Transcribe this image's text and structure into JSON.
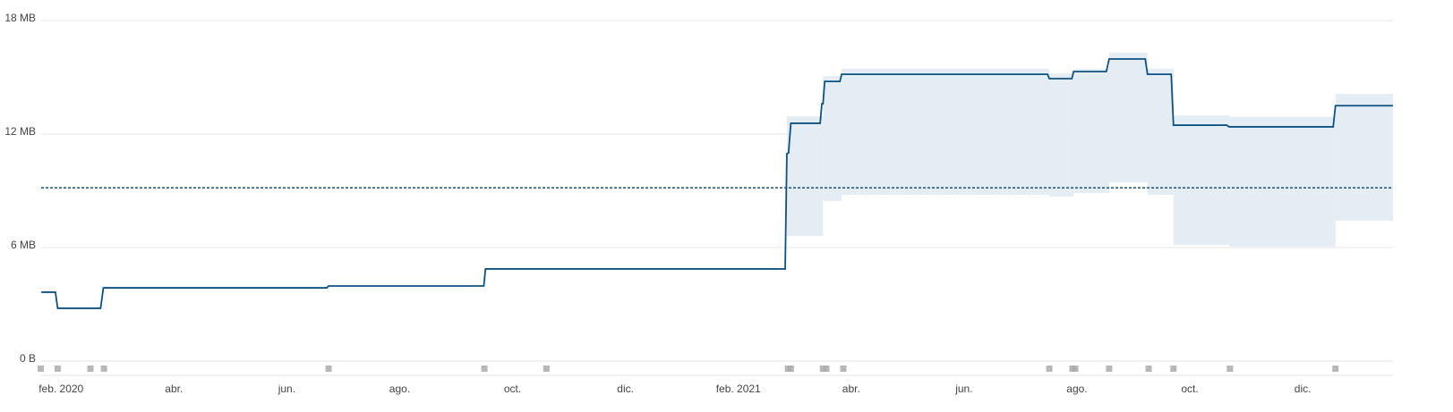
{
  "chart_data": {
    "type": "line",
    "x": [
      0.65,
      0.9,
      0.94,
      1.7,
      1.75,
      5.71,
      5.74,
      8.49,
      8.52,
      13.83,
      13.86,
      13.89,
      13.93,
      14.45,
      14.48,
      14.5,
      14.53,
      14.8,
      14.83,
      18.48,
      18.51,
      18.91,
      18.94,
      19.52,
      19.57,
      20.21,
      20.25,
      20.67,
      20.71,
      21.65,
      21.7,
      23.54,
      23.58,
      24.6
    ],
    "series": [
      {
        "color": "#0d5282",
        "values": [
          3.64,
          3.64,
          2.79,
          2.79,
          3.87,
          3.87,
          3.97,
          3.97,
          4.87,
          4.87,
          10.96,
          11.0,
          12.57,
          12.57,
          13.6,
          13.6,
          14.78,
          14.78,
          15.16,
          15.16,
          14.93,
          14.93,
          15.3,
          15.3,
          15.97,
          15.97,
          15.16,
          15.16,
          12.47,
          12.47,
          12.38,
          12.38,
          13.5,
          13.5
        ]
      }
    ],
    "band": {
      "color": "#e4ecf4",
      "x0": [
        13.86,
        14.5,
        14.83,
        18.51,
        18.94,
        19.57,
        20.25,
        20.71,
        21.7,
        23.58
      ],
      "x1": [
        14.45,
        14.8,
        18.48,
        18.91,
        19.52,
        20.21,
        20.67,
        21.65,
        23.54,
        24.6
      ],
      "upper": [
        12.94,
        15.07,
        15.45,
        15.2,
        15.45,
        16.3,
        15.45,
        12.99,
        12.9,
        14.12
      ],
      "lower": [
        6.61,
        8.46,
        8.79,
        8.69,
        8.88,
        9.45,
        8.79,
        6.14,
        6.05,
        7.42
      ]
    },
    "reference_line": {
      "value": 9.16,
      "color": "#1a4f7a"
    },
    "events": {
      "color": "#aaaaaa",
      "x": [
        0.64,
        0.94,
        1.52,
        1.76,
        5.74,
        8.5,
        9.6,
        13.88,
        13.93,
        14.5,
        14.56,
        14.86,
        18.51,
        18.92,
        18.97,
        19.57,
        20.27,
        20.71,
        21.71,
        23.58
      ]
    },
    "xlim": [
      0.6,
      24.6
    ],
    "xticks": [
      {
        "value": 1,
        "label": "feb. 2020"
      },
      {
        "value": 3,
        "label": "abr."
      },
      {
        "value": 5,
        "label": "jun."
      },
      {
        "value": 7,
        "label": "ago."
      },
      {
        "value": 9,
        "label": "oct."
      },
      {
        "value": 11,
        "label": "dic."
      },
      {
        "value": 13,
        "label": "feb. 2021"
      },
      {
        "value": 15,
        "label": "abr."
      },
      {
        "value": 17,
        "label": "jun."
      },
      {
        "value": 19,
        "label": "ago."
      },
      {
        "value": 21,
        "label": "oct."
      },
      {
        "value": 23,
        "label": "dic."
      }
    ],
    "ylim": [
      0,
      18
    ],
    "yticks": [
      {
        "value": 0,
        "label": "0 B"
      },
      {
        "value": 6,
        "label": "6 MB"
      },
      {
        "value": 12,
        "label": "12 MB"
      },
      {
        "value": 18,
        "label": "18 MB"
      }
    ],
    "grid": true
  }
}
